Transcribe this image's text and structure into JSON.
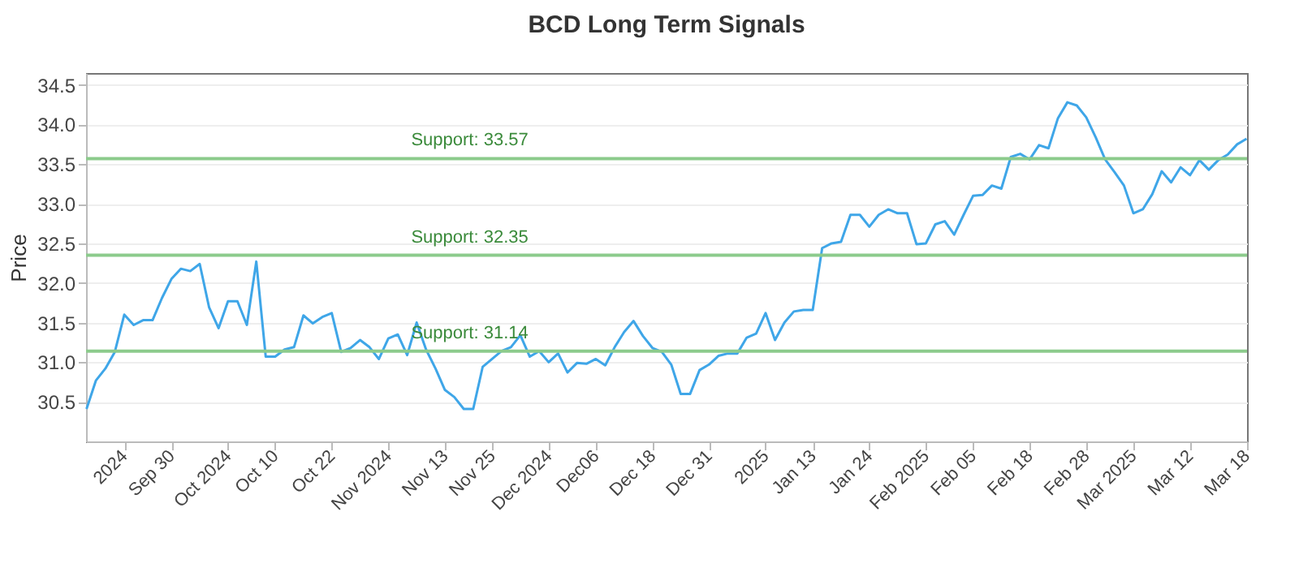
{
  "chart_data": {
    "type": "line",
    "title": "BCD Long Term Signals",
    "ylabel": "Price",
    "categories": [
      null,
      null,
      null,
      null,
      "2024",
      null,
      null,
      null,
      null,
      "Sep 30",
      null,
      null,
      null,
      null,
      null,
      "Oct 2024",
      null,
      null,
      null,
      null,
      "Oct 10",
      null,
      null,
      null,
      null,
      null,
      "Oct 22",
      null,
      null,
      null,
      null,
      null,
      "Nov 2024",
      null,
      null,
      null,
      null,
      null,
      "Nov 13",
      null,
      null,
      null,
      null,
      "Nov 25",
      null,
      null,
      null,
      null,
      null,
      "Dec 2024",
      null,
      null,
      null,
      null,
      "Dec06",
      null,
      null,
      null,
      null,
      null,
      "Dec 18",
      null,
      null,
      null,
      null,
      null,
      "Dec 31",
      null,
      null,
      null,
      null,
      null,
      "2025",
      null,
      null,
      null,
      null,
      "Jan 13",
      null,
      null,
      null,
      null,
      null,
      "Jan 24",
      null,
      null,
      null,
      null,
      null,
      "Feb 2025",
      null,
      null,
      null,
      null,
      "Feb 05",
      null,
      null,
      null,
      null,
      null,
      "Feb 18",
      null,
      null,
      null,
      null,
      null,
      "Feb 28",
      null,
      null,
      null,
      null,
      "Mar 2025",
      null,
      null,
      null,
      null,
      null,
      "Mar 12",
      null,
      null,
      null,
      null,
      null,
      "Mar 18"
    ],
    "series": [
      {
        "color": "#3fa6e8",
        "values": [
          30.41,
          30.77,
          30.92,
          31.13,
          31.6,
          31.47,
          31.53,
          31.53,
          31.81,
          32.05,
          32.18,
          32.15,
          32.24,
          31.69,
          31.43,
          31.77,
          31.77,
          31.47,
          32.27,
          31.07,
          31.07,
          31.16,
          31.19,
          31.59,
          31.49,
          31.57,
          31.62,
          31.13,
          31.18,
          31.28,
          31.19,
          31.04,
          31.3,
          31.35,
          31.09,
          31.5,
          31.16,
          30.92,
          30.65,
          30.56,
          30.41,
          30.41,
          30.94,
          31.04,
          31.14,
          31.19,
          31.34,
          31.07,
          31.14,
          31.0,
          31.11,
          30.87,
          30.99,
          30.98,
          31.04,
          30.96,
          31.19,
          31.38,
          31.52,
          31.33,
          31.18,
          31.13,
          30.97,
          30.6,
          30.6,
          30.9,
          30.97,
          31.08,
          31.11,
          31.11,
          31.31,
          31.36,
          31.62,
          31.28,
          31.5,
          31.64,
          31.66,
          31.66,
          32.44,
          32.5,
          32.52,
          32.86,
          32.86,
          32.71,
          32.86,
          32.93,
          32.88,
          32.88,
          32.49,
          32.5,
          32.74,
          32.78,
          32.61,
          32.86,
          33.1,
          33.11,
          33.23,
          33.19,
          33.59,
          33.63,
          33.56,
          33.74,
          33.7,
          34.08,
          34.28,
          34.24,
          34.09,
          33.84,
          33.56,
          33.4,
          33.23,
          32.88,
          32.93,
          33.12,
          33.41,
          33.27,
          33.46,
          33.36,
          33.55,
          33.43,
          33.55,
          33.62,
          33.75,
          33.82
        ]
      }
    ],
    "ylim": [
      30.0,
      34.65
    ],
    "yticks": [
      30.5,
      {
        "value": 31,
        "label": "31.0"
      },
      31.5,
      {
        "value": 32,
        "label": "32.0"
      },
      32.5,
      {
        "value": 33,
        "label": "33.0"
      },
      33.5,
      {
        "value": 34,
        "label": "34.0"
      },
      34.5
    ],
    "grid": "y",
    "ref_lines": [
      {
        "axis": "y",
        "value": 33.57,
        "label": "Support: 33.57",
        "color": "#8ccb8c"
      },
      {
        "axis": "y",
        "value": 32.35,
        "label": "Support: 32.35",
        "color": "#8ccb8c"
      },
      {
        "axis": "y",
        "value": 31.14,
        "label": "Support: 31.14",
        "color": "#8ccb8c"
      }
    ]
  }
}
